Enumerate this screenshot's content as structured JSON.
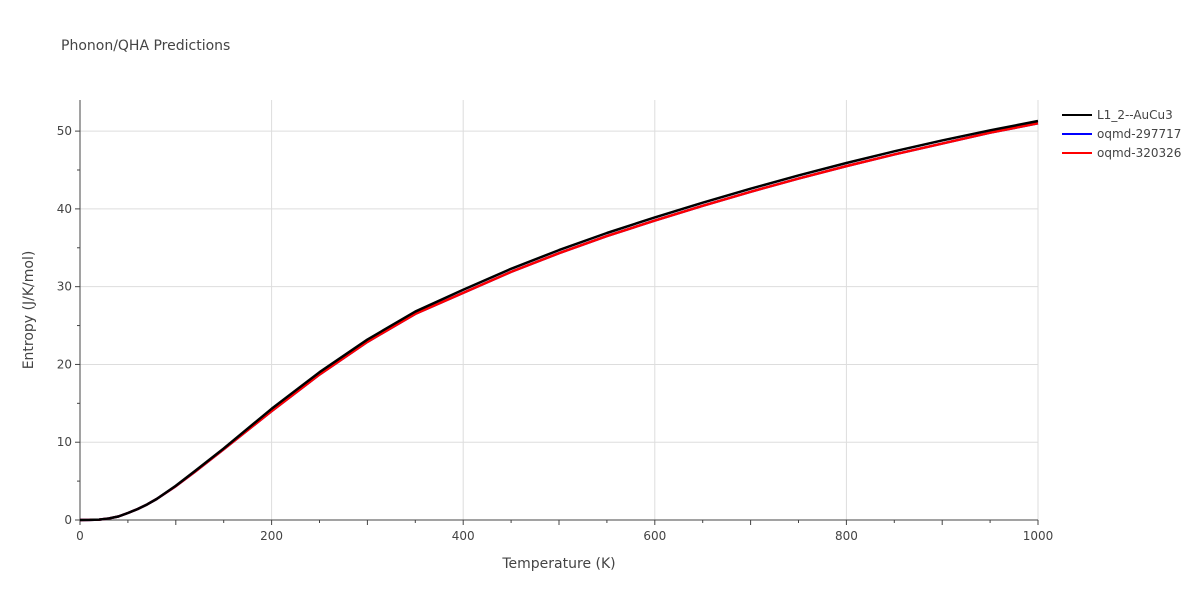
{
  "chart_data": {
    "type": "line",
    "title": "Phonon/QHA Predictions",
    "xlabel": "Temperature (K)",
    "ylabel": "Entropy (J/K/mol)",
    "xlim": [
      0,
      1000
    ],
    "ylim": [
      0,
      54
    ],
    "xticks": [
      "0",
      "200",
      "400",
      "600",
      "800",
      "1000"
    ],
    "yticks": [
      "0",
      "10",
      "20",
      "30",
      "40",
      "50"
    ],
    "grid": true,
    "legend_position": "top-right",
    "series": [
      {
        "name": "L1_2--AuCu3",
        "color": "#000000",
        "x": [
          0,
          10,
          20,
          30,
          40,
          50,
          60,
          70,
          80,
          100,
          120,
          150,
          200,
          250,
          300,
          350,
          400,
          450,
          500,
          550,
          600,
          650,
          700,
          750,
          800,
          850,
          900,
          950,
          1000
        ],
        "y": [
          0,
          0.01,
          0.05,
          0.2,
          0.45,
          0.9,
          1.4,
          2.0,
          2.7,
          4.4,
          6.3,
          9.2,
          14.3,
          19.0,
          23.2,
          26.8,
          29.6,
          32.3,
          34.7,
          36.9,
          38.9,
          40.8,
          42.6,
          44.3,
          45.9,
          47.4,
          48.8,
          50.1,
          51.3
        ]
      },
      {
        "name": "oqmd-297717",
        "color": "#0000ff",
        "x": [
          0,
          10,
          20,
          30,
          40,
          50,
          60,
          70,
          80,
          100,
          120,
          150,
          200,
          250,
          300,
          350,
          400,
          450,
          500,
          550,
          600,
          650,
          700,
          750,
          800,
          850,
          900,
          950,
          1000
        ],
        "y": [
          0,
          0.01,
          0.05,
          0.2,
          0.45,
          0.9,
          1.4,
          2.0,
          2.7,
          4.35,
          6.2,
          9.1,
          14.0,
          18.7,
          22.9,
          26.5,
          29.2,
          31.9,
          34.3,
          36.5,
          38.5,
          40.4,
          42.2,
          43.9,
          45.5,
          47.0,
          48.4,
          49.8,
          51.0
        ]
      },
      {
        "name": "oqmd-320326",
        "color": "#ff0000",
        "x": [
          0,
          10,
          20,
          30,
          40,
          50,
          60,
          70,
          80,
          100,
          120,
          150,
          200,
          250,
          300,
          350,
          400,
          450,
          500,
          550,
          600,
          650,
          700,
          750,
          800,
          850,
          900,
          950,
          1000
        ],
        "y": [
          0,
          0.01,
          0.05,
          0.2,
          0.45,
          0.9,
          1.4,
          2.0,
          2.7,
          4.35,
          6.2,
          9.1,
          14.0,
          18.7,
          22.9,
          26.5,
          29.2,
          31.9,
          34.3,
          36.5,
          38.5,
          40.4,
          42.2,
          43.9,
          45.5,
          47.0,
          48.4,
          49.8,
          51.0
        ]
      }
    ]
  }
}
